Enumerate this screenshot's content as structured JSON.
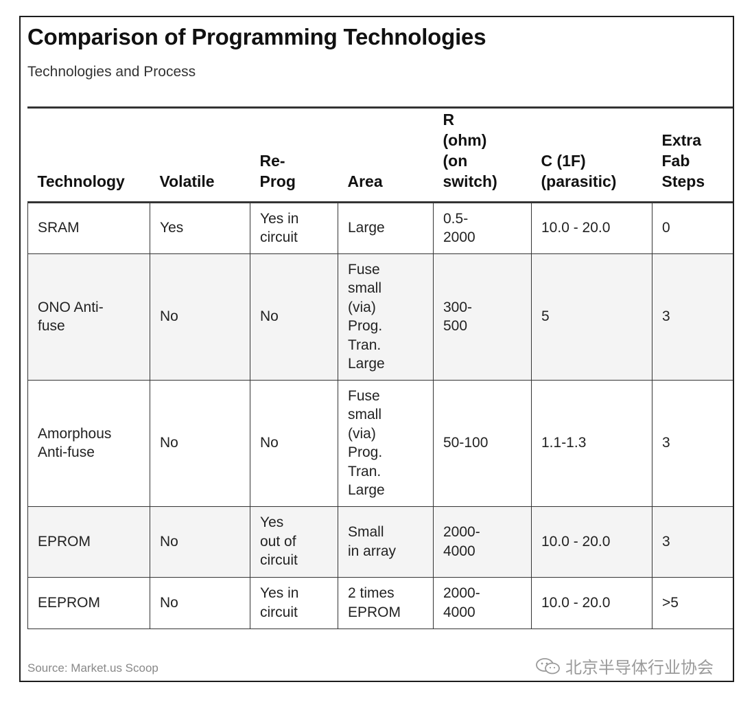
{
  "title": "Comparison of Programming Technologies",
  "subtitle": "Technologies and Process",
  "table": {
    "headers": [
      "Technology",
      "Volatile",
      "Re-\nProg",
      "Area",
      "R\n(ohm)\n(on\nswitch)",
      "C (1F)\n(parasitic)",
      "Extra\nFab\nSteps"
    ],
    "rows": [
      [
        "SRAM",
        "Yes",
        "Yes in\ncircuit",
        "Large",
        "0.5-\n2000",
        "10.0 - 20.0",
        "0"
      ],
      [
        "ONO Anti-\nfuse",
        "No",
        "No",
        "Fuse\nsmall\n(via)\nProg.\nTran.\nLarge",
        "300-\n500",
        "5",
        "3"
      ],
      [
        "Amorphous\nAnti-fuse",
        "No",
        "No",
        "Fuse\nsmall\n(via)\nProg.\nTran.\nLarge",
        "50-100",
        "1.1-1.3",
        "3"
      ],
      [
        "EPROM",
        "No",
        "Yes\nout of\ncircuit",
        "Small\nin array",
        "2000-\n4000",
        "10.0 - 20.0",
        "3"
      ],
      [
        "EEPROM",
        "No",
        "Yes in\ncircuit",
        "2 times\nEPROM",
        "2000-\n4000",
        "10.0 - 20.0",
        ">5"
      ]
    ]
  },
  "source": "Source: Market.us Scoop",
  "watermark": {
    "icon": "wechat-icon",
    "text": "北京半导体行业协会"
  }
}
